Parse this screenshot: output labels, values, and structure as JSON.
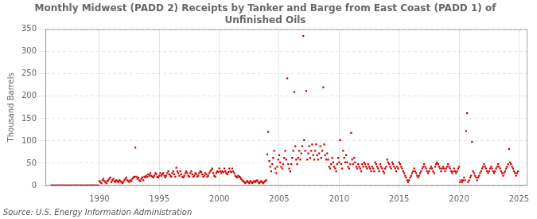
{
  "chart_data": {
    "type": "scatter",
    "title": "Monthly Midwest (PADD 2) Receipts by Tanker and Barge from East Coast (PADD 1) of\nUnfinished Oils",
    "y_label": "Thousand Barrels",
    "annotations": [
      "Source: U.S. Energy Information Administration"
    ],
    "color": "#cc0000",
    "marker": "square",
    "grid": true,
    "xlim": [
      1985.5,
      2025.7
    ],
    "ylim": [
      0,
      350
    ],
    "xticks": [
      1990,
      1995,
      2000,
      2005,
      2010,
      2015,
      2020,
      2025
    ],
    "yticks": [
      0,
      50,
      100,
      150,
      200,
      250,
      300,
      350
    ],
    "x": [
      1986.0,
      1986.1,
      1986.2,
      1986.3,
      1986.4,
      1986.5,
      1986.6,
      1986.7,
      1986.8,
      1986.9,
      1987.0,
      1987.1,
      1987.2,
      1987.3,
      1987.4,
      1987.5,
      1987.6,
      1987.7,
      1987.8,
      1987.9,
      1988.0,
      1988.1,
      1988.2,
      1988.3,
      1988.4,
      1988.5,
      1988.6,
      1988.7,
      1988.8,
      1988.9,
      1989.0,
      1989.1,
      1989.2,
      1989.3,
      1989.4,
      1989.5,
      1989.6,
      1989.7,
      1989.8,
      1989.9,
      1990.0,
      1990.08,
      1990.17,
      1990.25,
      1990.33,
      1990.42,
      1990.5,
      1990.58,
      1990.67,
      1990.75,
      1990.83,
      1990.92,
      1991.0,
      1991.08,
      1991.17,
      1991.25,
      1991.33,
      1991.42,
      1991.5,
      1991.58,
      1991.67,
      1991.75,
      1991.83,
      1991.92,
      1992.0,
      1992.08,
      1992.17,
      1992.25,
      1992.33,
      1992.42,
      1992.5,
      1992.58,
      1992.67,
      1992.75,
      1992.83,
      1992.92,
      1993.0,
      1993.08,
      1993.17,
      1993.25,
      1993.33,
      1993.42,
      1993.5,
      1993.58,
      1993.67,
      1993.75,
      1993.83,
      1993.92,
      1994.0,
      1994.08,
      1994.17,
      1994.25,
      1994.33,
      1994.42,
      1994.5,
      1994.58,
      1994.67,
      1994.75,
      1994.83,
      1994.92,
      1995.0,
      1995.08,
      1995.17,
      1995.25,
      1995.33,
      1995.42,
      1995.5,
      1995.58,
      1995.67,
      1995.75,
      1995.83,
      1995.92,
      1996.0,
      1996.08,
      1996.17,
      1996.25,
      1996.33,
      1996.42,
      1996.5,
      1996.58,
      1996.67,
      1996.75,
      1996.83,
      1996.92,
      1997.0,
      1997.08,
      1997.17,
      1997.25,
      1997.33,
      1997.42,
      1997.5,
      1997.58,
      1997.67,
      1997.75,
      1997.83,
      1997.92,
      1998.0,
      1998.08,
      1998.17,
      1998.25,
      1998.33,
      1998.42,
      1998.5,
      1998.58,
      1998.67,
      1998.75,
      1998.83,
      1998.92,
      1999.0,
      1999.08,
      1999.17,
      1999.25,
      1999.33,
      1999.42,
      1999.5,
      1999.58,
      1999.67,
      1999.75,
      1999.83,
      1999.92,
      2000.0,
      2000.08,
      2000.17,
      2000.25,
      2000.33,
      2000.42,
      2000.5,
      2000.58,
      2000.67,
      2000.75,
      2000.83,
      2000.92,
      2001.0,
      2001.08,
      2001.17,
      2001.25,
      2001.33,
      2001.42,
      2001.5,
      2001.58,
      2001.67,
      2001.75,
      2001.83,
      2001.92,
      2002.0,
      2002.08,
      2002.17,
      2002.25,
      2002.33,
      2002.42,
      2002.5,
      2002.58,
      2002.67,
      2002.75,
      2002.83,
      2002.92,
      2003.0,
      2003.08,
      2003.17,
      2003.25,
      2003.33,
      2003.42,
      2003.5,
      2003.58,
      2003.67,
      2003.75,
      2003.83,
      2003.92,
      2004.0,
      2004.08,
      2004.17,
      2004.25,
      2004.33,
      2004.42,
      2004.5,
      2004.58,
      2004.67,
      2004.75,
      2004.83,
      2004.92,
      2005.0,
      2005.08,
      2005.17,
      2005.25,
      2005.33,
      2005.42,
      2005.5,
      2005.58,
      2005.67,
      2005.75,
      2005.83,
      2005.92,
      2006.0,
      2006.08,
      2006.17,
      2006.25,
      2006.33,
      2006.42,
      2006.5,
      2006.58,
      2006.67,
      2006.75,
      2006.83,
      2006.92,
      2007.0,
      2007.08,
      2007.17,
      2007.25,
      2007.33,
      2007.42,
      2007.5,
      2007.58,
      2007.67,
      2007.75,
      2007.83,
      2007.92,
      2008.0,
      2008.08,
      2008.17,
      2008.25,
      2008.33,
      2008.42,
      2008.5,
      2008.58,
      2008.67,
      2008.75,
      2008.83,
      2008.92,
      2009.0,
      2009.08,
      2009.17,
      2009.25,
      2009.33,
      2009.42,
      2009.5,
      2009.58,
      2009.67,
      2009.75,
      2009.83,
      2009.92,
      2010.0,
      2010.08,
      2010.17,
      2010.25,
      2010.33,
      2010.42,
      2010.5,
      2010.58,
      2010.67,
      2010.75,
      2010.83,
      2010.92,
      2011.0,
      2011.08,
      2011.17,
      2011.25,
      2011.33,
      2011.42,
      2011.5,
      2011.58,
      2011.67,
      2011.75,
      2011.83,
      2011.92,
      2012.0,
      2012.08,
      2012.17,
      2012.25,
      2012.33,
      2012.42,
      2012.5,
      2012.58,
      2012.67,
      2012.75,
      2012.83,
      2012.92,
      2013.0,
      2013.08,
      2013.17,
      2013.25,
      2013.33,
      2013.42,
      2013.5,
      2013.58,
      2013.67,
      2013.75,
      2013.83,
      2013.92,
      2014.0,
      2014.08,
      2014.17,
      2014.25,
      2014.33,
      2014.42,
      2014.5,
      2014.58,
      2014.67,
      2014.75,
      2014.83,
      2014.92,
      2015.0,
      2015.08,
      2015.17,
      2015.25,
      2015.33,
      2015.42,
      2015.5,
      2015.58,
      2015.67,
      2015.75,
      2015.83,
      2015.92,
      2016.0,
      2016.08,
      2016.17,
      2016.25,
      2016.33,
      2016.42,
      2016.5,
      2016.58,
      2016.67,
      2016.75,
      2016.83,
      2016.92,
      2017.0,
      2017.08,
      2017.17,
      2017.25,
      2017.33,
      2017.42,
      2017.5,
      2017.58,
      2017.67,
      2017.75,
      2017.83,
      2017.92,
      2018.0,
      2018.08,
      2018.17,
      2018.25,
      2018.33,
      2018.42,
      2018.5,
      2018.58,
      2018.67,
      2018.75,
      2018.83,
      2018.92,
      2019.0,
      2019.08,
      2019.17,
      2019.25,
      2019.33,
      2019.42,
      2019.5,
      2019.58,
      2019.67,
      2019.75,
      2019.83,
      2019.92,
      2020.0,
      2020.08,
      2020.17,
      2020.25,
      2020.33,
      2020.42,
      2020.5,
      2020.58,
      2020.67,
      2020.75,
      2020.83,
      2020.92,
      2021.0,
      2021.08,
      2021.17,
      2021.25,
      2021.33,
      2021.42,
      2021.5,
      2021.58,
      2021.67,
      2021.75,
      2021.83,
      2021.92,
      2022.0,
      2022.08,
      2022.17,
      2022.25,
      2022.33,
      2022.42,
      2022.5,
      2022.58,
      2022.67,
      2022.75,
      2022.83,
      2022.92,
      2023.0,
      2023.08,
      2023.17,
      2023.25,
      2023.33,
      2023.42,
      2023.5,
      2023.58,
      2023.67,
      2023.75,
      2023.83,
      2023.92,
      2024.0,
      2024.08,
      2024.17,
      2024.25,
      2024.33,
      2024.42,
      2024.5,
      2024.58,
      2024.67,
      2024.75,
      2024.83,
      2024.92
    ],
    "values": [
      0,
      0,
      0,
      0,
      0,
      0,
      0,
      0,
      0,
      0,
      0,
      0,
      0,
      0,
      0,
      0,
      0,
      0,
      0,
      0,
      0,
      0,
      0,
      0,
      0,
      0,
      0,
      0,
      0,
      0,
      0,
      0,
      0,
      0,
      0,
      0,
      0,
      0,
      0,
      0,
      10,
      8,
      5,
      12,
      15,
      10,
      8,
      5,
      10,
      12,
      15,
      18,
      8,
      12,
      15,
      10,
      8,
      12,
      10,
      8,
      12,
      10,
      8,
      5,
      8,
      12,
      15,
      18,
      12,
      10,
      8,
      12,
      10,
      15,
      18,
      20,
      85,
      20,
      15,
      18,
      12,
      10,
      15,
      18,
      12,
      20,
      18,
      22,
      20,
      25,
      22,
      28,
      22,
      20,
      18,
      22,
      28,
      25,
      20,
      18,
      22,
      28,
      22,
      25,
      28,
      22,
      18,
      22,
      28,
      32,
      25,
      22,
      20,
      28,
      32,
      25,
      20,
      40,
      32,
      28,
      22,
      32,
      25,
      20,
      18,
      22,
      28,
      32,
      28,
      22,
      20,
      28,
      32,
      25,
      20,
      22,
      28,
      25,
      20,
      22,
      28,
      32,
      30,
      25,
      20,
      22,
      28,
      25,
      20,
      22,
      28,
      32,
      35,
      38,
      28,
      22,
      20,
      28,
      32,
      30,
      38,
      32,
      28,
      32,
      30,
      38,
      32,
      28,
      25,
      30,
      38,
      32,
      30,
      38,
      32,
      28,
      22,
      20,
      18,
      22,
      20,
      18,
      15,
      12,
      10,
      8,
      5,
      8,
      10,
      8,
      5,
      10,
      8,
      5,
      8,
      10,
      8,
      10,
      12,
      8,
      5,
      8,
      10,
      8,
      5,
      8,
      10,
      12,
      70,
      120,
      55,
      42,
      32,
      48,
      62,
      78,
      38,
      28,
      42,
      58,
      68,
      52,
      42,
      38,
      48,
      62,
      78,
      58,
      240,
      48,
      38,
      32,
      48,
      62,
      78,
      210,
      88,
      58,
      48,
      62,
      78,
      58,
      72,
      88,
      335,
      102,
      78,
      212,
      58,
      72,
      88,
      62,
      78,
      92,
      68,
      58,
      78,
      92,
      68,
      58,
      72,
      88,
      62,
      78,
      220,
      92,
      68,
      58,
      72,
      58,
      42,
      38,
      48,
      62,
      52,
      42,
      38,
      32,
      48,
      62,
      52,
      102,
      48,
      38,
      78,
      62,
      52,
      68,
      52,
      42,
      38,
      48,
      118,
      58,
      48,
      62,
      52,
      42,
      38,
      48,
      42,
      38,
      32,
      48,
      42,
      52,
      48,
      42,
      38,
      48,
      42,
      38,
      32,
      42,
      38,
      32,
      52,
      48,
      42,
      38,
      32,
      48,
      42,
      38,
      32,
      28,
      38,
      42,
      58,
      52,
      48,
      42,
      38,
      52,
      48,
      42,
      38,
      32,
      42,
      38,
      52,
      48,
      42,
      38,
      32,
      28,
      22,
      18,
      12,
      8,
      12,
      18,
      22,
      28,
      32,
      38,
      32,
      28,
      22,
      18,
      22,
      28,
      32,
      38,
      42,
      48,
      42,
      38,
      32,
      28,
      32,
      38,
      42,
      38,
      32,
      28,
      42,
      48,
      52,
      48,
      42,
      38,
      32,
      38,
      42,
      38,
      32,
      38,
      42,
      48,
      42,
      38,
      32,
      28,
      32,
      38,
      32,
      28,
      32,
      38,
      42,
      8,
      12,
      8,
      12,
      18,
      12,
      122,
      162,
      8,
      12,
      18,
      22,
      98,
      32,
      28,
      22,
      18,
      12,
      18,
      22,
      28,
      32,
      38,
      42,
      48,
      42,
      38,
      32,
      28,
      32,
      38,
      42,
      38,
      32,
      28,
      32,
      38,
      42,
      48,
      42,
      38,
      32,
      28,
      22,
      28,
      32,
      38,
      42,
      48,
      82,
      52,
      48,
      42,
      38,
      32,
      28,
      22,
      28,
      32
    ]
  }
}
